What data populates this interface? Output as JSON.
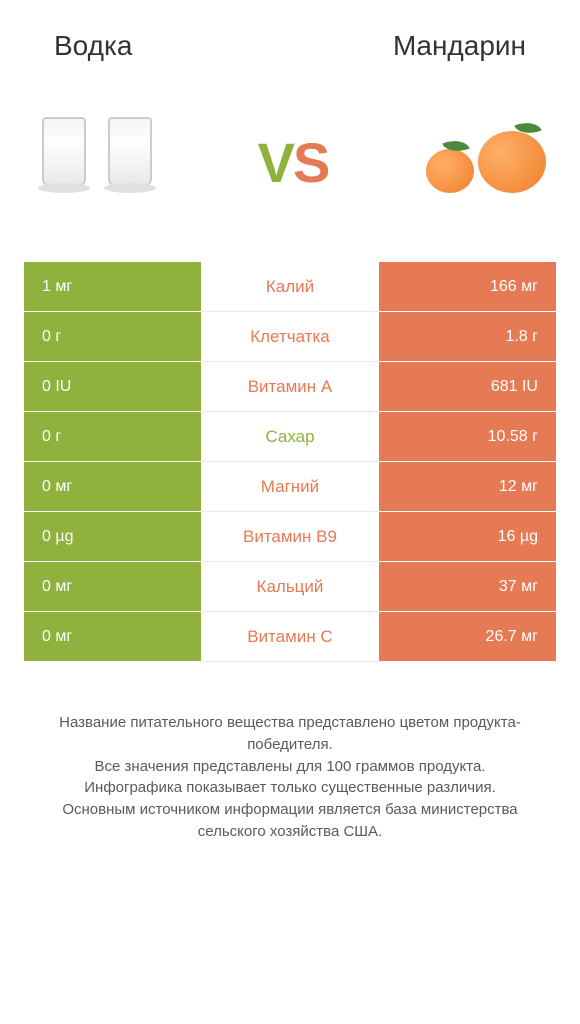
{
  "header": {
    "left_title": "Водка",
    "right_title": "Mандарин"
  },
  "vs": {
    "v": "V",
    "s": "S"
  },
  "colors": {
    "left": "#8fb23e",
    "right": "#e67a54"
  },
  "rows": [
    {
      "left": "1 мг",
      "name": "Калий",
      "right": "166 мг",
      "winner": "right"
    },
    {
      "left": "0 г",
      "name": "Клетчатка",
      "right": "1.8 г",
      "winner": "right"
    },
    {
      "left": "0 IU",
      "name": "Витамин A",
      "right": "681 IU",
      "winner": "right"
    },
    {
      "left": "0 г",
      "name": "Сахар",
      "right": "10.58 г",
      "winner": "left"
    },
    {
      "left": "0 мг",
      "name": "Магний",
      "right": "12 мг",
      "winner": "right"
    },
    {
      "left": "0 µg",
      "name": "Витамин B9",
      "right": "16 µg",
      "winner": "right"
    },
    {
      "left": "0 мг",
      "name": "Кальций",
      "right": "37 мг",
      "winner": "right"
    },
    {
      "left": "0 мг",
      "name": "Витамин C",
      "right": "26.7 мг",
      "winner": "right"
    }
  ],
  "footer": {
    "line1": "Название питательного вещества представлено цветом продукта-победителя.",
    "line2": "Все значения представлены для 100 граммов продукта.",
    "line3": "Инфографика показывает только существенные различия.",
    "line4": "Основным источником информации является база министерства сельского хозяйства США."
  }
}
